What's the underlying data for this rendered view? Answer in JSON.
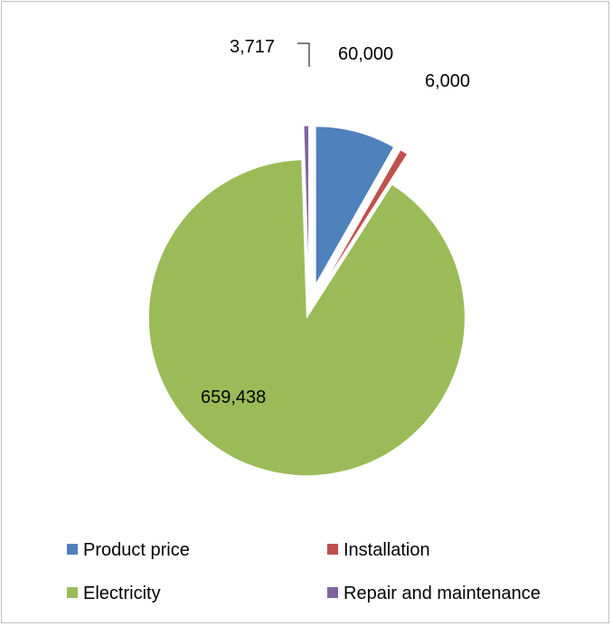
{
  "chart_data": {
    "type": "pie",
    "title": "",
    "categories": [
      "Product price",
      "Installation",
      "Electricity",
      "Repair and maintenance"
    ],
    "values": [
      60000,
      6000,
      659438,
      3717
    ],
    "value_labels": [
      "60,000",
      "6,000",
      "659,438",
      "3,717"
    ],
    "colors": [
      "#4f81bd",
      "#c0504d",
      "#9bbb59",
      "#8064a2"
    ],
    "exploded": true,
    "legend_position": "bottom"
  }
}
